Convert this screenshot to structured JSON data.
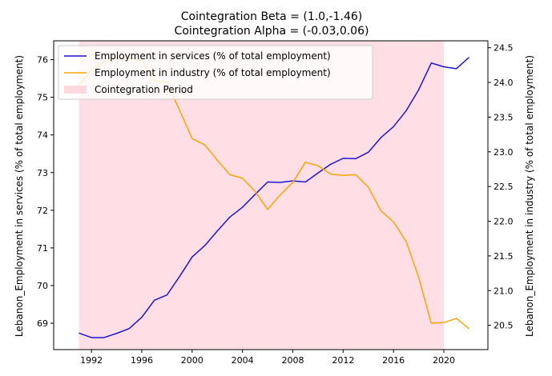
{
  "chart_data": {
    "type": "line",
    "title_line1": "Cointegration Beta = (1.0,-1.46)",
    "title_line2": "Cointegration Alpha = (-0.03,0.06)",
    "ylabel_left": "Lebanon_Employment in services (% of total employment)",
    "ylabel_right": "Lebanon_Employment in industry (% of total employment)",
    "xlim": [
      1989,
      2023.5
    ],
    "ylim_left": [
      68.3,
      76.5
    ],
    "ylim_right": [
      20.15,
      24.6
    ],
    "x_ticks": [
      1992,
      1996,
      2000,
      2004,
      2008,
      2012,
      2016,
      2020
    ],
    "y_ticks_left": [
      69,
      70,
      71,
      72,
      73,
      74,
      75,
      76
    ],
    "y_ticks_right": [
      20.5,
      21.0,
      21.5,
      22.0,
      22.5,
      23.0,
      23.5,
      24.0,
      24.5
    ],
    "cointegration_period": [
      1991,
      2020
    ],
    "legend_placement": "upper-left",
    "colors": {
      "services": "#1f14d6",
      "industry": "#ffa500",
      "period": "#ffc0cb"
    },
    "x": [
      1991,
      1992,
      1993,
      1994,
      1995,
      1996,
      1997,
      1998,
      1999,
      2000,
      2001,
      2002,
      2003,
      2004,
      2005,
      2006,
      2007,
      2008,
      2009,
      2010,
      2011,
      2012,
      2013,
      2014,
      2015,
      2016,
      2017,
      2018,
      2019,
      2020,
      2021,
      2022
    ],
    "series": [
      {
        "name": "Employment in services (% of total employment)",
        "axis": "left",
        "values": [
          68.74,
          68.62,
          68.62,
          68.73,
          68.86,
          69.16,
          69.61,
          69.75,
          70.24,
          70.76,
          71.06,
          71.45,
          71.82,
          72.08,
          72.42,
          72.75,
          72.74,
          72.78,
          72.75,
          72.99,
          73.22,
          73.38,
          73.37,
          73.54,
          73.93,
          74.22,
          74.64,
          75.2,
          75.91,
          75.81,
          75.76,
          76.06
        ]
      },
      {
        "name": "Employment in industry (% of total employment)",
        "axis": "right",
        "values": [
          23.96,
          24.18,
          24.29,
          24.35,
          24.35,
          24.32,
          24.02,
          24.0,
          23.6,
          23.19,
          23.1,
          22.88,
          22.67,
          22.62,
          22.43,
          22.17,
          22.38,
          22.56,
          22.85,
          22.8,
          22.68,
          22.66,
          22.67,
          22.49,
          22.15,
          21.99,
          21.71,
          21.19,
          20.53,
          20.54,
          20.6,
          20.45
        ]
      }
    ],
    "legend_period_label": "Cointegration Period"
  }
}
